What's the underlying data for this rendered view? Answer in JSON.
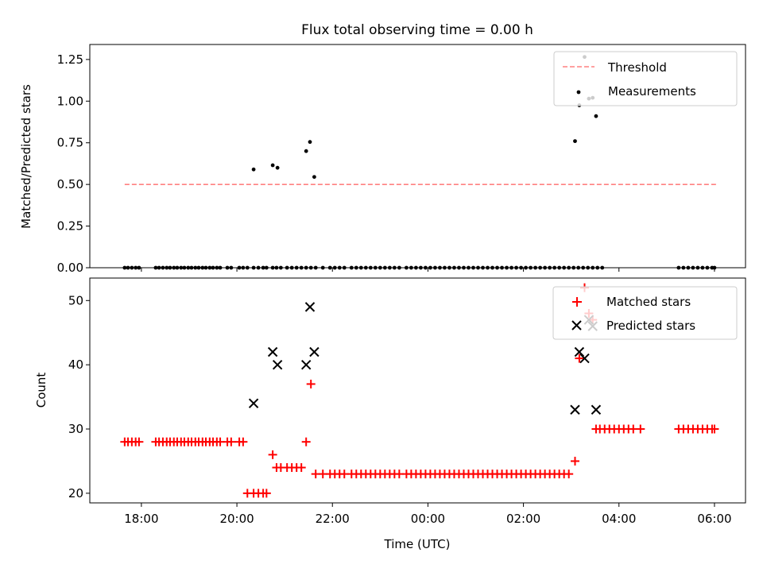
{
  "chart_data": [
    {
      "type": "scatter",
      "title": "Flux total observing time = 0.00 h",
      "xlabel": "",
      "ylabel": "Matched/Predicted stars",
      "xlim": [
        -1.08,
        12.65
      ],
      "ylim": [
        0.0,
        1.34
      ],
      "yticks": [
        0.0,
        0.25,
        0.5,
        0.75,
        1.0,
        1.25
      ],
      "ytick_labels": [
        "0.00",
        "0.25",
        "0.50",
        "0.75",
        "1.00",
        "1.25"
      ],
      "xticks": [
        0,
        2,
        4,
        6,
        8,
        10,
        12
      ],
      "xtick_labels_visible": false,
      "legend_position": "top-right",
      "legend": [
        "Threshold",
        "Measurements"
      ],
      "threshold": {
        "name": "Threshold",
        "value": 0.5,
        "x_range": [
          -0.35,
          12.05
        ],
        "color": "#ff8080"
      },
      "series": [
        {
          "name": "Measurements",
          "color": "#000000",
          "x": [
            -0.35,
            -0.28,
            -0.2,
            -0.12,
            -0.05,
            0.3,
            0.37,
            0.45,
            0.53,
            0.6,
            0.68,
            0.75,
            0.83,
            0.9,
            0.98,
            1.05,
            1.13,
            1.2,
            1.28,
            1.35,
            1.43,
            1.5,
            1.58,
            1.65,
            1.8,
            1.88,
            2.05,
            2.13,
            2.22,
            2.35,
            2.45,
            2.55,
            2.62,
            2.75,
            2.83,
            2.92,
            3.05,
            3.15,
            3.25,
            3.35,
            3.45,
            3.55,
            3.65,
            3.8,
            3.95,
            4.05,
            4.15,
            4.25,
            4.4,
            4.5,
            4.6,
            4.7,
            4.8,
            4.9,
            5.0,
            5.1,
            5.2,
            5.3,
            5.4,
            5.55,
            5.65,
            5.75,
            5.85,
            5.95,
            6.05,
            6.15,
            6.25,
            6.35,
            6.45,
            6.55,
            6.65,
            6.75,
            6.85,
            6.95,
            7.05,
            7.15,
            7.25,
            7.35,
            7.45,
            7.55,
            7.65,
            7.75,
            7.85,
            7.95,
            8.05,
            8.15,
            8.25,
            8.35,
            8.45,
            8.55,
            8.65,
            8.75,
            8.85,
            8.95,
            9.05,
            9.15,
            9.25,
            9.35,
            9.45,
            9.55,
            9.65,
            11.25,
            11.35,
            11.45,
            11.55,
            11.65,
            11.75,
            11.85,
            11.95,
            12.0,
            2.35,
            2.75,
            2.85,
            3.45,
            3.53,
            3.62,
            9.08,
            9.17,
            9.28,
            9.37,
            9.45,
            9.52
          ],
          "y": [
            0,
            0,
            0,
            0,
            0,
            0,
            0,
            0,
            0,
            0,
            0,
            0,
            0,
            0,
            0,
            0,
            0,
            0,
            0,
            0,
            0,
            0,
            0,
            0,
            0,
            0,
            0,
            0,
            0,
            0,
            0,
            0,
            0,
            0,
            0,
            0,
            0,
            0,
            0,
            0,
            0,
            0,
            0,
            0,
            0,
            0,
            0,
            0,
            0,
            0,
            0,
            0,
            0,
            0,
            0,
            0,
            0,
            0,
            0,
            0,
            0,
            0,
            0,
            0,
            0,
            0,
            0,
            0,
            0,
            0,
            0,
            0,
            0,
            0,
            0,
            0,
            0,
            0,
            0,
            0,
            0,
            0,
            0,
            0,
            0,
            0,
            0,
            0,
            0,
            0,
            0,
            0,
            0,
            0,
            0,
            0,
            0,
            0,
            0,
            0,
            0,
            0,
            0,
            0,
            0,
            0,
            0,
            0,
            0,
            0,
            0.59,
            0.615,
            0.6,
            0.7,
            0.755,
            0.545,
            0.76,
            0.975,
            1.265,
            1.015,
            1.02,
            0.91
          ]
        }
      ]
    },
    {
      "type": "scatter",
      "title": "",
      "xlabel": "Time (UTC)",
      "ylabel": "Count",
      "xlim": [
        -1.08,
        12.65
      ],
      "ylim": [
        18.5,
        53.5
      ],
      "yticks": [
        20,
        30,
        40,
        50
      ],
      "ytick_labels": [
        "20",
        "30",
        "40",
        "50"
      ],
      "xticks": [
        0,
        2,
        4,
        6,
        8,
        10,
        12
      ],
      "xtick_labels": [
        "18:00",
        "20:00",
        "22:00",
        "00:00",
        "02:00",
        "04:00",
        "06:00"
      ],
      "legend_position": "top-right",
      "legend": [
        "Matched stars",
        "Predicted stars"
      ],
      "series": [
        {
          "name": "Matched stars",
          "marker": "+",
          "color": "#ff0000",
          "x": [
            -0.35,
            -0.28,
            -0.2,
            -0.12,
            -0.05,
            0.3,
            0.37,
            0.45,
            0.53,
            0.6,
            0.68,
            0.75,
            0.83,
            0.9,
            0.98,
            1.05,
            1.13,
            1.2,
            1.28,
            1.35,
            1.43,
            1.5,
            1.58,
            1.65,
            1.8,
            1.88,
            2.05,
            2.13,
            2.22,
            2.35,
            2.45,
            2.55,
            2.62,
            2.75,
            2.83,
            2.92,
            3.05,
            3.15,
            3.25,
            3.35,
            3.45,
            3.55,
            3.65,
            3.8,
            3.95,
            4.05,
            4.15,
            4.25,
            4.4,
            4.5,
            4.6,
            4.7,
            4.8,
            4.9,
            5.0,
            5.1,
            5.2,
            5.3,
            5.4,
            5.55,
            5.65,
            5.75,
            5.85,
            5.95,
            6.05,
            6.15,
            6.25,
            6.35,
            6.45,
            6.55,
            6.65,
            6.75,
            6.85,
            6.95,
            7.05,
            7.15,
            7.25,
            7.35,
            7.45,
            7.55,
            7.65,
            7.75,
            7.85,
            7.95,
            8.05,
            8.15,
            8.25,
            8.35,
            8.45,
            8.55,
            8.65,
            8.75,
            8.85,
            8.95,
            9.08,
            9.17,
            9.28,
            9.37,
            9.45,
            9.52,
            9.6,
            9.7,
            9.8,
            9.9,
            10.0,
            10.1,
            10.2,
            10.3,
            10.45,
            11.25,
            11.35,
            11.45,
            11.55,
            11.65,
            11.75,
            11.85,
            11.95,
            12.0
          ],
          "y": [
            28,
            28,
            28,
            28,
            28,
            28,
            28,
            28,
            28,
            28,
            28,
            28,
            28,
            28,
            28,
            28,
            28,
            28,
            28,
            28,
            28,
            28,
            28,
            28,
            28,
            28,
            28,
            28,
            20,
            20,
            20,
            20,
            20,
            26,
            24,
            24,
            24,
            24,
            24,
            24,
            28,
            37,
            23,
            23,
            23,
            23,
            23,
            23,
            23,
            23,
            23,
            23,
            23,
            23,
            23,
            23,
            23,
            23,
            23,
            23,
            23,
            23,
            23,
            23,
            23,
            23,
            23,
            23,
            23,
            23,
            23,
            23,
            23,
            23,
            23,
            23,
            23,
            23,
            23,
            23,
            23,
            23,
            23,
            23,
            23,
            23,
            23,
            23,
            23,
            23,
            23,
            23,
            23,
            23,
            25,
            41,
            52,
            48,
            47,
            30,
            30,
            30,
            30,
            30,
            30,
            30,
            30,
            30,
            30,
            30,
            30,
            30,
            30,
            30,
            30,
            30,
            30,
            30
          ]
        },
        {
          "name": "Predicted stars",
          "marker": "x",
          "color": "#000000",
          "x": [
            2.35,
            2.75,
            2.85,
            3.45,
            3.53,
            3.62,
            9.08,
            9.17,
            9.28,
            9.37,
            9.45,
            9.52
          ],
          "y": [
            34,
            42,
            40,
            40,
            49,
            42,
            33,
            42,
            41,
            47,
            46,
            33
          ]
        }
      ]
    }
  ]
}
